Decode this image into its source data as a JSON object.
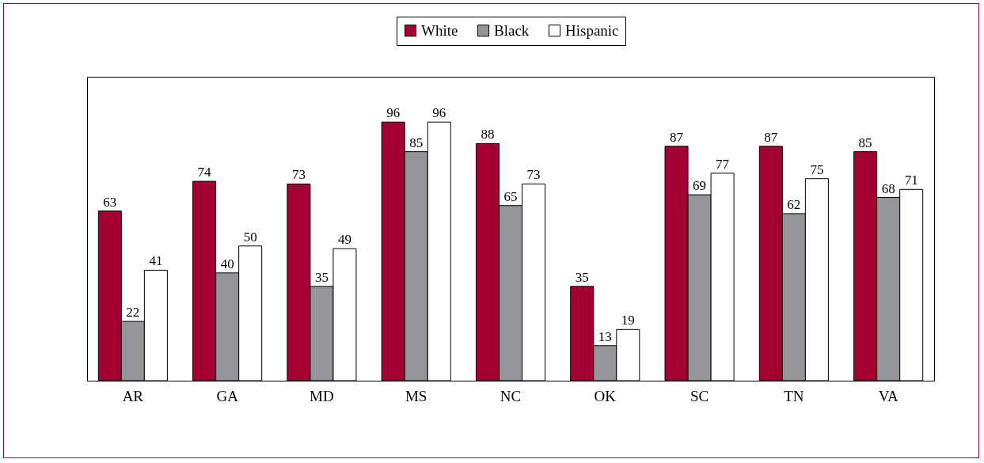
{
  "chart_data": {
    "type": "bar",
    "categories": [
      "AR",
      "GA",
      "MD",
      "MS",
      "NC",
      "OK",
      "SC",
      "TN",
      "VA"
    ],
    "series": [
      {
        "name": "White",
        "color": "#a50034",
        "values": [
          63,
          74,
          73,
          96,
          88,
          35,
          87,
          87,
          85
        ]
      },
      {
        "name": "Black",
        "color": "#939598",
        "values": [
          22,
          40,
          35,
          85,
          65,
          13,
          69,
          62,
          68
        ]
      },
      {
        "name": "Hispanic",
        "color": "#ffffff",
        "values": [
          41,
          50,
          49,
          96,
          73,
          19,
          77,
          75,
          71
        ]
      }
    ],
    "data_labels": true,
    "legend": "top"
  }
}
